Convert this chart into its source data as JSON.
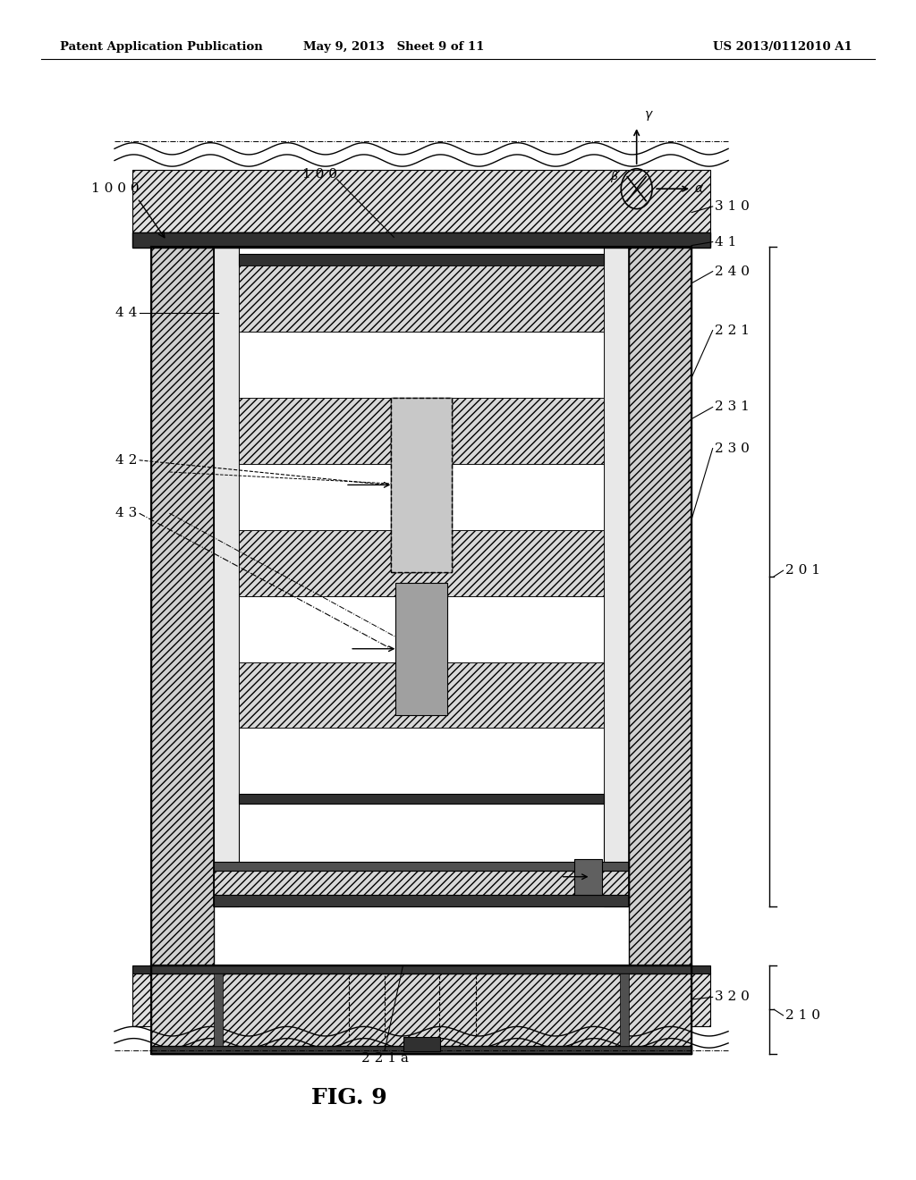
{
  "bg_color": "#ffffff",
  "header_left": "Patent Application Publication",
  "header_mid": "May 9, 2013   Sheet 9 of 11",
  "header_right": "US 2013/0112010 A1",
  "fig_label": "FIG. 9",
  "label_fontsize": 11,
  "header_fontsize": 9.5
}
